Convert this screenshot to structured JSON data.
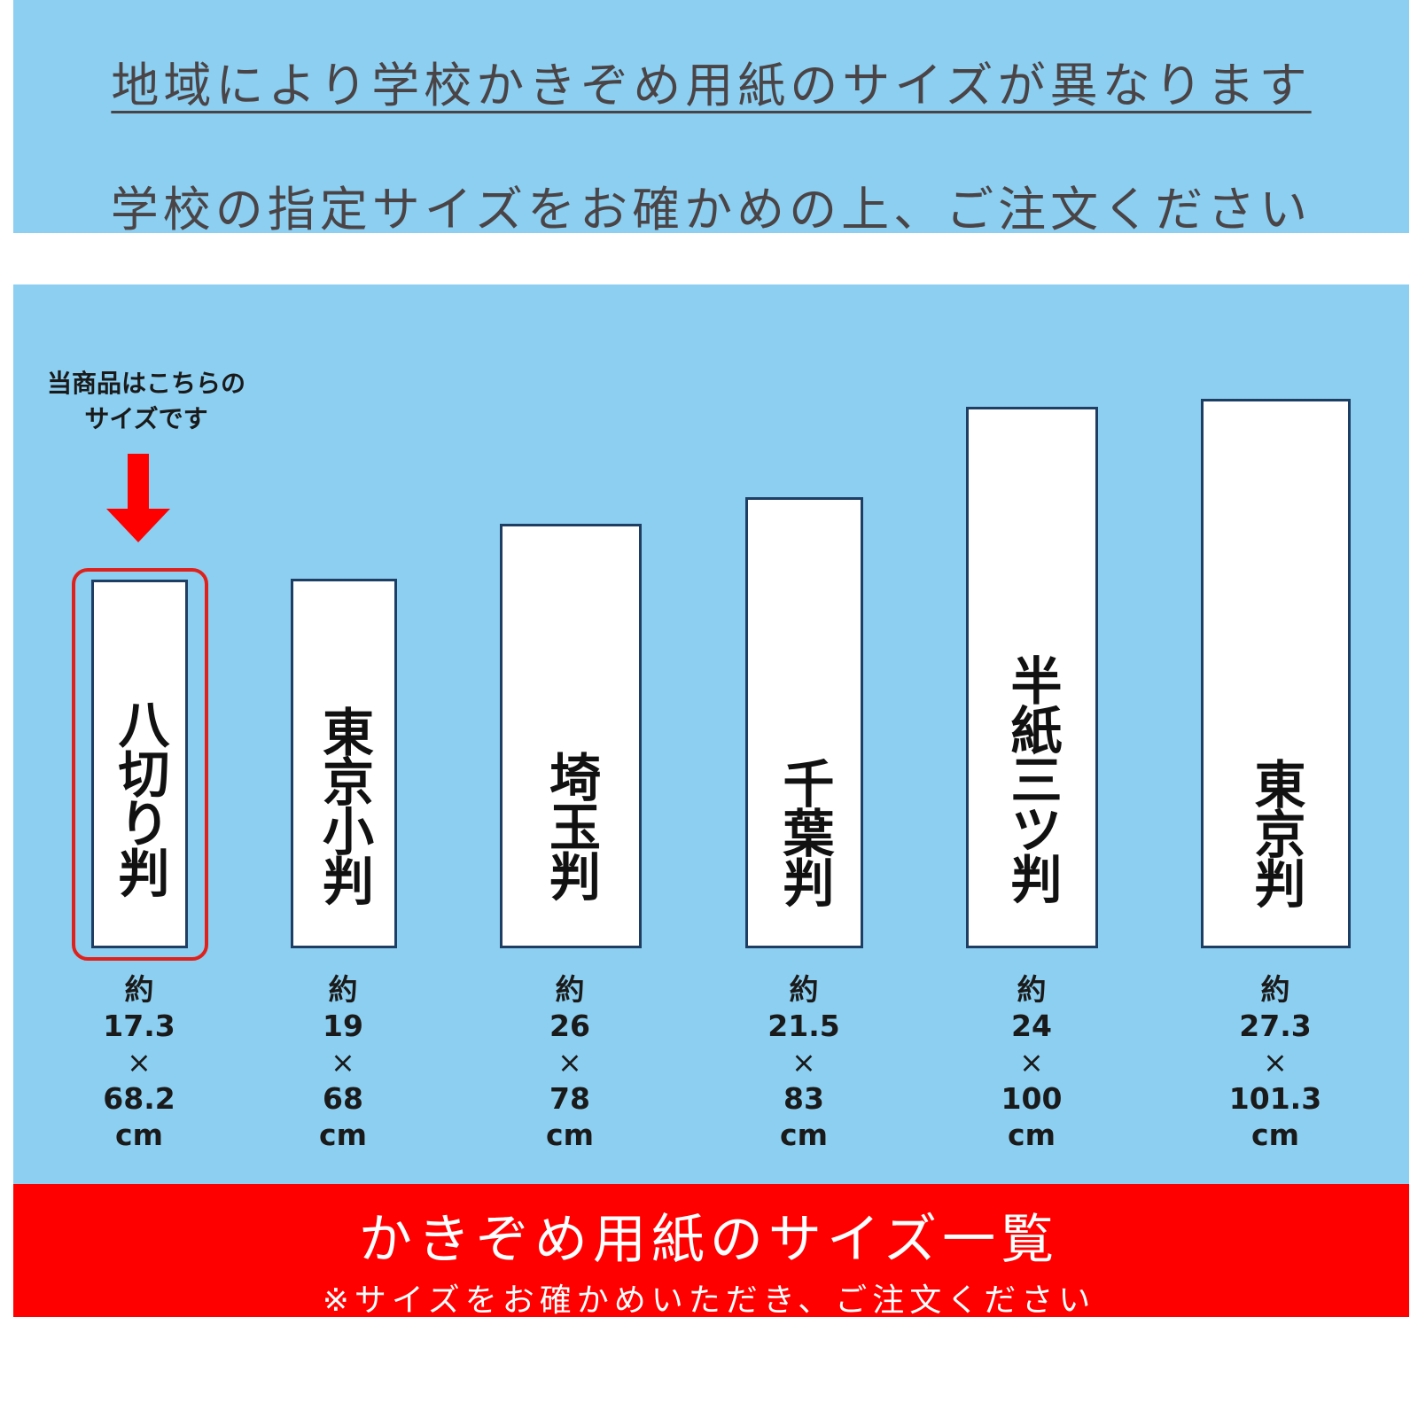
{
  "header": {
    "line1": "地域により学校かきぞめ用紙のサイズが異なります",
    "line2": "学校の指定サイズをお確かめの上、ご注文ください"
  },
  "callout": {
    "line1": "当商品はこちらの",
    "line2": "サイズです"
  },
  "papers": [
    {
      "name": "八切り判",
      "size": {
        "prefix": "約",
        "width": "17.3",
        "times": "×",
        "height": "68.2",
        "unit": "cm"
      },
      "highlighted": true
    },
    {
      "name": "東京小判",
      "size": {
        "prefix": "約",
        "width": "19",
        "times": "×",
        "height": "68",
        "unit": "cm"
      },
      "highlighted": false
    },
    {
      "name": "埼玉判",
      "size": {
        "prefix": "約",
        "width": "26",
        "times": "×",
        "height": "78",
        "unit": "cm"
      },
      "highlighted": false
    },
    {
      "name": "千葉判",
      "size": {
        "prefix": "約",
        "width": "21.5",
        "times": "×",
        "height": "83",
        "unit": "cm"
      },
      "highlighted": false
    },
    {
      "name": "半紙三ツ判",
      "size": {
        "prefix": "約",
        "width": "24",
        "times": "×",
        "height": "100",
        "unit": "cm"
      },
      "highlighted": false
    },
    {
      "name": "東京判",
      "size": {
        "prefix": "約",
        "width": "27.3",
        "times": "×",
        "height": "101.3",
        "unit": "cm"
      },
      "highlighted": false
    }
  ],
  "footer": {
    "title": "かきぞめ用紙のサイズ一覧",
    "note": "※サイズをお確かめいただき、ご注文ください"
  },
  "colors": {
    "panel": "#8ccff1",
    "banner": "#ff0000",
    "highlight": "#e0201a",
    "paper_border": "#1f3e63"
  }
}
